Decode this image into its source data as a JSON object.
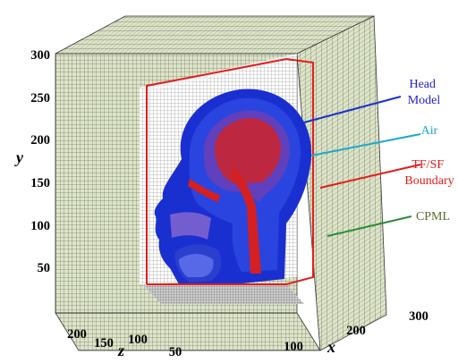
{
  "figure": {
    "axes": {
      "y": {
        "label": "y",
        "ticks": [
          "300",
          "250",
          "200",
          "150",
          "100",
          "50"
        ]
      },
      "z": {
        "label": "z",
        "ticks": [
          "200",
          "150",
          "100",
          "50"
        ]
      },
      "x": {
        "label": "x",
        "ticks": [
          "100",
          "200",
          "300"
        ]
      }
    },
    "annotations": [
      {
        "id": "head",
        "lines": [
          "Head",
          "Model"
        ],
        "color": "#1f1fd6"
      },
      {
        "id": "air",
        "lines": [
          "Air"
        ],
        "color": "#19a9cf"
      },
      {
        "id": "tfsf",
        "lines": [
          "TF/SF",
          "Boundary"
        ],
        "color": "#e01b1b"
      },
      {
        "id": "cpml",
        "lines": [
          "CPML"
        ],
        "color": "#5a6b2f"
      }
    ],
    "colors": {
      "cpml_fill": "#dde5c7",
      "grid": "#4a4a4a",
      "tfsf": "#e51c1c",
      "head_outer": "#1a2fd0",
      "head_inner": "#d42020",
      "air_arrow": "#19a9cf",
      "cpml_arrow": "#2a8a3a"
    }
  }
}
